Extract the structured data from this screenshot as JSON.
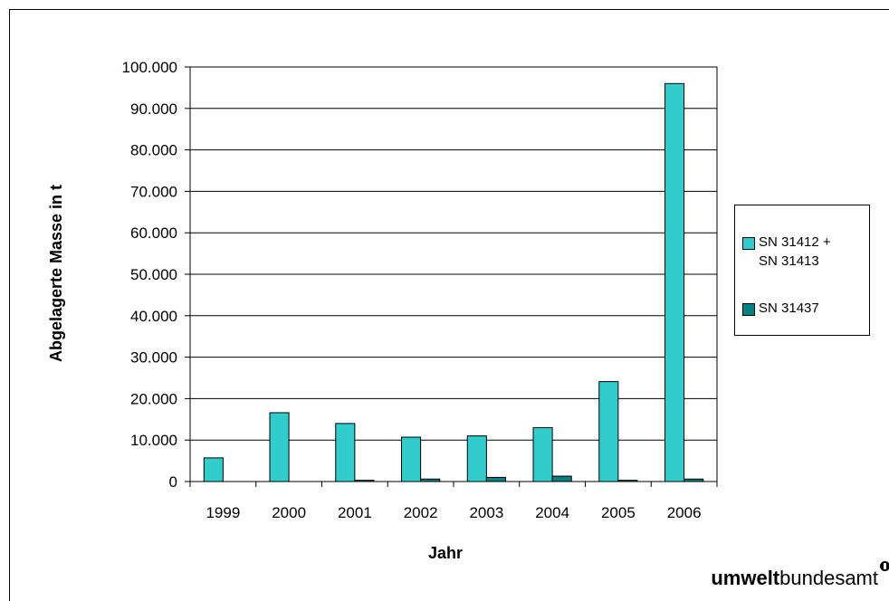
{
  "chart_data": {
    "type": "bar",
    "title": "",
    "xlabel": "Jahr",
    "ylabel": "Abgelagerte Masse in t",
    "categories": [
      "1999",
      "2000",
      "2001",
      "2002",
      "2003",
      "2004",
      "2005",
      "2006"
    ],
    "ylim": [
      0,
      100000
    ],
    "yticks": [
      0,
      10000,
      20000,
      30000,
      40000,
      50000,
      60000,
      70000,
      80000,
      90000,
      100000
    ],
    "ytick_labels": [
      "0",
      "10.000",
      "20.000",
      "30.000",
      "40.000",
      "50.000",
      "60.000",
      "70.000",
      "80.000",
      "90.000",
      "100.000"
    ],
    "grid": true,
    "legend_position": "right",
    "series": [
      {
        "name": "SN 31412 + SN 31413",
        "legend_lines": [
          "SN 31412 +",
          "SN 31413"
        ],
        "color": "#33CCCC",
        "values": [
          5700,
          16600,
          14000,
          10700,
          11000,
          13000,
          24100,
          96000
        ]
      },
      {
        "name": "SN 31437",
        "legend_lines": [
          "SN 31437"
        ],
        "color": "#008080",
        "values": [
          0,
          0,
          300,
          600,
          1000,
          1300,
          300,
          600
        ]
      }
    ]
  },
  "logo": {
    "bold": "umwelt",
    "regular": "bundesamt"
  }
}
